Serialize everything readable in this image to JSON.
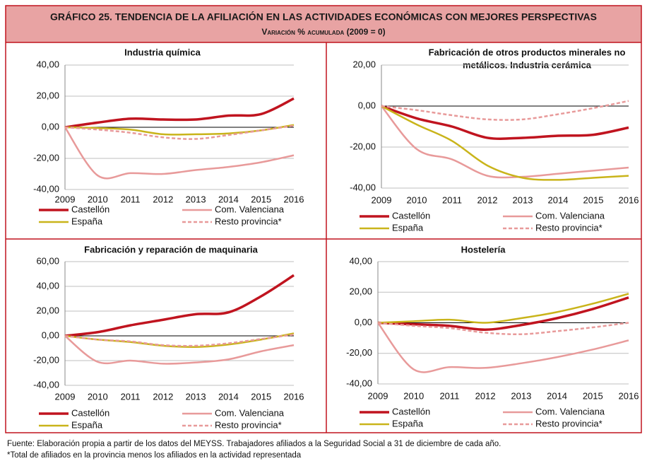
{
  "header": {
    "title": "GRÁFICO 25. TENDENCIA DE LA AFILIACIÓN EN LAS ACTIVIDADES ECONÓMICAS CON MEJORES PERSPECTIVAS",
    "subtitle": "Variación % acumulada (2009 = 0)"
  },
  "chart_data": [
    {
      "type": "line",
      "title": [
        "Industria química"
      ],
      "categories": [
        "2009",
        "2010",
        "2011",
        "2012",
        "2013",
        "2014",
        "2015",
        "2016"
      ],
      "ylim": [
        -40,
        40
      ],
      "yticks": [
        {
          "value": -40,
          "label": "-40,00"
        },
        {
          "value": -20,
          "label": "-20,00"
        },
        {
          "value": 0,
          "label": "0,00"
        },
        {
          "value": 20,
          "label": "20,00"
        },
        {
          "value": 40,
          "label": "40,00"
        }
      ],
      "grid": true,
      "series": [
        {
          "name": "Castellón",
          "color": "#c0141f",
          "dashed": false,
          "values": [
            0,
            3,
            5.5,
            5,
            5,
            7.5,
            8.5,
            18.5
          ]
        },
        {
          "name": "Com. Valenciana",
          "color": "#e89a9a",
          "dashed": false,
          "values": [
            0,
            -31,
            -29.5,
            -30,
            -27.5,
            -25.5,
            -22.5,
            -18
          ]
        },
        {
          "name": "España",
          "color": "#c9b41a",
          "dashed": false,
          "values": [
            0,
            -0.5,
            -1.5,
            -4.5,
            -4.5,
            -4,
            -2,
            1.5
          ]
        },
        {
          "name": "Resto provincia*",
          "color": "#e89a9a",
          "dashed": true,
          "values": [
            0,
            -1.5,
            -3.5,
            -6.5,
            -7.5,
            -5,
            -2,
            1
          ]
        }
      ]
    },
    {
      "type": "line",
      "title": [
        "Fabricación de otros productos minerales no",
        "metálicos. Industria cerámica"
      ],
      "categories": [
        "2009",
        "2010",
        "2011",
        "2012",
        "2013",
        "2014",
        "2015",
        "2016"
      ],
      "ylim": [
        -40,
        20
      ],
      "yticks": [
        {
          "value": -40,
          "label": "-40,00"
        },
        {
          "value": -20,
          "label": "-20,00"
        },
        {
          "value": 0,
          "label": "0,00"
        },
        {
          "value": 20,
          "label": "20,00"
        }
      ],
      "grid": true,
      "series": [
        {
          "name": "Castellón",
          "color": "#c0141f",
          "dashed": false,
          "values": [
            0,
            -6,
            -10,
            -15.5,
            -15.5,
            -14.5,
            -14,
            -10.5
          ]
        },
        {
          "name": "Com. Valenciana",
          "color": "#e89a9a",
          "dashed": false,
          "values": [
            0,
            -21,
            -26,
            -34,
            -34.5,
            -33,
            -31.5,
            -30
          ]
        },
        {
          "name": "España",
          "color": "#c9b41a",
          "dashed": false,
          "values": [
            0,
            -9,
            -17,
            -29,
            -35,
            -36,
            -35,
            -34
          ]
        },
        {
          "name": "Resto provincia*",
          "color": "#e89a9a",
          "dashed": true,
          "values": [
            0,
            -2,
            -4.5,
            -6.5,
            -6.5,
            -4,
            -1,
            2.5
          ]
        }
      ]
    },
    {
      "type": "line",
      "title": [
        "Fabricación y reparación de maquinaria"
      ],
      "categories": [
        "2009",
        "2010",
        "2011",
        "2012",
        "2013",
        "2014",
        "2015",
        "2016"
      ],
      "ylim": [
        -40,
        60
      ],
      "yticks": [
        {
          "value": -40,
          "label": "-40,00"
        },
        {
          "value": -20,
          "label": "-20,00"
        },
        {
          "value": 0,
          "label": "0,00"
        },
        {
          "value": 20,
          "label": "20,00"
        },
        {
          "value": 40,
          "label": "40,00"
        },
        {
          "value": 60,
          "label": "60,00"
        }
      ],
      "grid": true,
      "series": [
        {
          "name": "Castellón",
          "color": "#c0141f",
          "dashed": false,
          "values": [
            0,
            3,
            8.5,
            13,
            17.5,
            19,
            32,
            49
          ]
        },
        {
          "name": "Com. Valenciana",
          "color": "#e89a9a",
          "dashed": false,
          "values": [
            0,
            -21,
            -20,
            -22.5,
            -21.5,
            -19,
            -12.5,
            -7.5
          ]
        },
        {
          "name": "España",
          "color": "#c9b41a",
          "dashed": false,
          "values": [
            0,
            -3,
            -5,
            -8,
            -9,
            -7,
            -3,
            2
          ]
        },
        {
          "name": "Resto provincia*",
          "color": "#e89a9a",
          "dashed": true,
          "values": [
            0,
            -3,
            -4.5,
            -7.5,
            -8,
            -6,
            -2.5,
            1
          ]
        }
      ]
    },
    {
      "type": "line",
      "title": [
        "Hostelería"
      ],
      "categories": [
        "2009",
        "2010",
        "2011",
        "2012",
        "2013",
        "2014",
        "2015",
        "2016"
      ],
      "ylim": [
        -40,
        40
      ],
      "yticks": [
        {
          "value": -40,
          "label": "-40,00"
        },
        {
          "value": -20,
          "label": "-20,00"
        },
        {
          "value": 0,
          "label": "0,00"
        },
        {
          "value": 20,
          "label": "20,00"
        },
        {
          "value": 40,
          "label": "40,00"
        }
      ],
      "grid": true,
      "series": [
        {
          "name": "Castellón",
          "color": "#c0141f",
          "dashed": false,
          "values": [
            0,
            -1,
            -2,
            -4.5,
            -1.5,
            3,
            9,
            16.5
          ]
        },
        {
          "name": "Com. Valenciana",
          "color": "#e89a9a",
          "dashed": false,
          "values": [
            0,
            -30.5,
            -29,
            -29.5,
            -26.5,
            -22.5,
            -17.5,
            -11.5
          ]
        },
        {
          "name": "España",
          "color": "#c9b41a",
          "dashed": false,
          "values": [
            0,
            1,
            2,
            0,
            3,
            7,
            12.5,
            19
          ]
        },
        {
          "name": "Resto provincia*",
          "color": "#e89a9a",
          "dashed": true,
          "values": [
            0,
            -2,
            -3.5,
            -6.5,
            -7.5,
            -5.5,
            -3,
            0
          ]
        }
      ]
    }
  ],
  "footnotes": [
    "Fuente: Elaboración propia a partir de los datos del MEYSS. Trabajadores afiliados a la Seguridad Social a 31 de diciembre de cada año.",
    "*Total de afiliados en la provincia menos los afiliados en la actividad representada"
  ]
}
